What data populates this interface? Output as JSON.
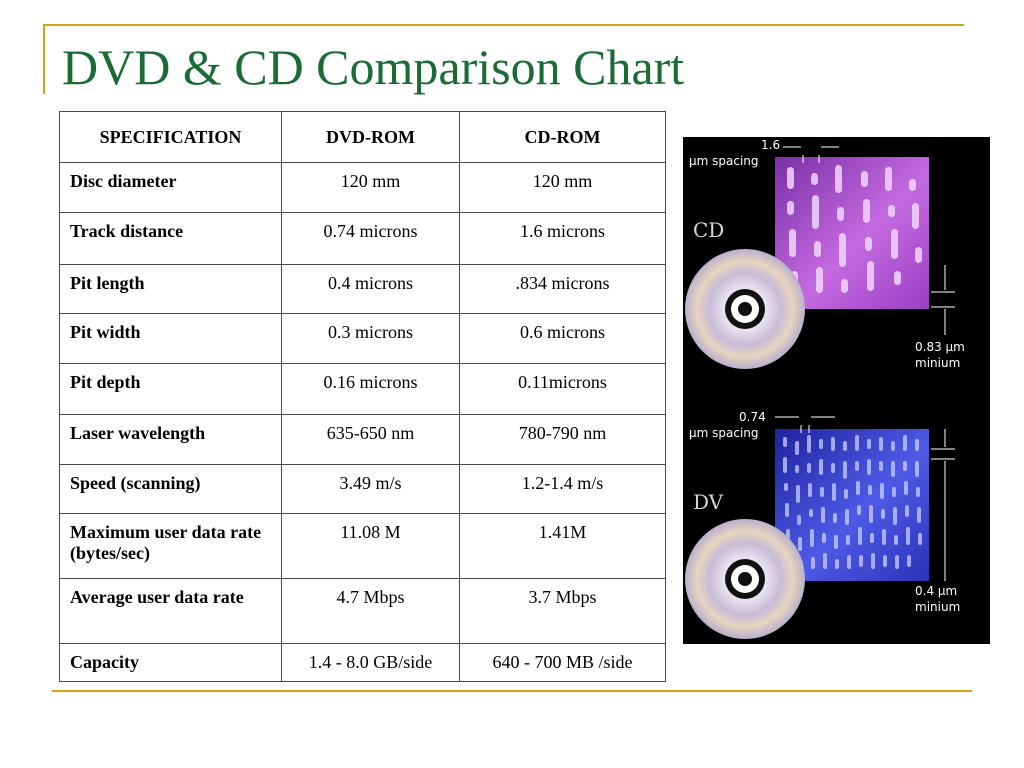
{
  "title": "DVD & CD Comparison Chart",
  "table": {
    "headers": [
      "SPECIFICATION",
      "DVD-ROM",
      "CD-ROM"
    ],
    "rows": [
      {
        "spec": "Disc diameter",
        "dvd": "120 mm",
        "cd": "120 mm"
      },
      {
        "spec": "Track distance",
        "dvd": "0.74 microns",
        "cd": "1.6 microns"
      },
      {
        "spec": "Pit length",
        "dvd": "0.4 microns",
        "cd": ".834 microns"
      },
      {
        "spec": "Pit width",
        "dvd": "0.3 microns",
        "cd": "0.6 microns"
      },
      {
        "spec": "Pit depth",
        "dvd": "0.16 microns",
        "cd": "0.11microns"
      },
      {
        "spec": "Laser wavelength",
        "dvd": "635-650 nm",
        "cd": "780-790 nm"
      },
      {
        "spec": "Speed (scanning)",
        "dvd": "3.49 m/s",
        "cd": "1.2-1.4 m/s"
      },
      {
        "spec": "Maximum user data rate (bytes/sec)",
        "dvd": "11.08 M",
        "cd": "1.41M"
      },
      {
        "spec": "Average user data rate",
        "dvd": "4.7 Mbps",
        "cd": "3.7 Mbps"
      },
      {
        "spec": "Capacity",
        "dvd": "1.4 - 8.0 GB/side",
        "cd": "640 - 700 MB /side"
      }
    ]
  },
  "figure": {
    "cd": {
      "label": "CD",
      "spacing_value": "1.6",
      "spacing_unit": "µm spacing",
      "min_value": "0.83 µm",
      "min_word": "minium",
      "surface_color": "#b35ad6"
    },
    "dvd": {
      "label": "DV",
      "spacing_value": "0.74",
      "spacing_unit": "µm spacing",
      "min_value": "0.4 µm",
      "min_word": "minium",
      "surface_color": "#3f45d8"
    }
  }
}
